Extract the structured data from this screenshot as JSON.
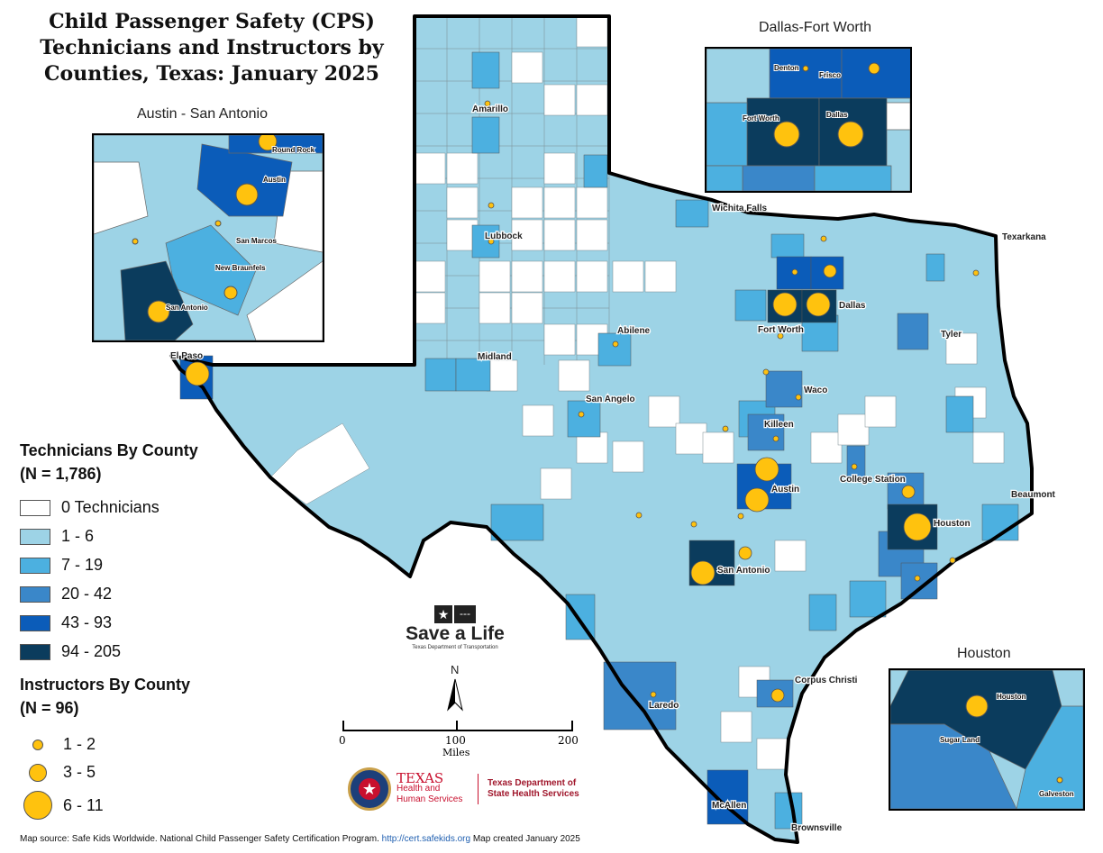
{
  "title": [
    "Child Passenger Safety (CPS)",
    "Technicians and Instructors by",
    "Counties, Texas: January 2025"
  ],
  "colors": {
    "c0": "#ffffff",
    "c1": "#9dd3e6",
    "c2": "#4cb0e0",
    "c3": "#3a87c9",
    "c4": "#0b5cb9",
    "c5": "#0b3c5d",
    "instructor": "#ffc20e"
  },
  "legend": {
    "technicians_title": "Technicians By County",
    "technicians_n": "(N = 1,786)",
    "technicians": [
      {
        "label": "0 Technicians",
        "color": "#ffffff"
      },
      {
        "label": "1 - 6",
        "color": "#9dd3e6"
      },
      {
        "label": "7 - 19",
        "color": "#4cb0e0"
      },
      {
        "label": "20 - 42",
        "color": "#3a87c9"
      },
      {
        "label": "43 - 93",
        "color": "#0b5cb9"
      },
      {
        "label": "94 - 205",
        "color": "#0b3c5d"
      }
    ],
    "instructors_title": "Instructors By County",
    "instructors_n": "(N = 96)",
    "instructors": [
      {
        "label": "1 - 2",
        "size": "small"
      },
      {
        "label": "3 - 5",
        "size": "medium"
      },
      {
        "label": "6 - 11",
        "size": "large"
      }
    ]
  },
  "cities": [
    "Amarillo",
    "Lubbock",
    "Wichita Falls",
    "Texarkana",
    "Dallas",
    "Fort Worth",
    "Abilene",
    "Tyler",
    "Midland",
    "El Paso",
    "Waco",
    "San Angelo",
    "Killeen",
    "College Station",
    "Austin",
    "Beaumont",
    "Houston",
    "San Antonio",
    "Corpus Christi",
    "Laredo",
    "McAllen",
    "Brownsville"
  ],
  "insets": {
    "austin": {
      "title": "Austin - San Antonio",
      "labels": [
        "Round Rock",
        "Austin",
        "San Marcos",
        "New Braunfels",
        "San Antonio"
      ]
    },
    "dfw": {
      "title": "Dallas-Fort Worth",
      "labels": [
        "Denton",
        "Frisco",
        "Fort Worth",
        "Dallas"
      ]
    },
    "houston": {
      "title": "Houston",
      "labels": [
        "Houston",
        "Sugar Land",
        "Galveston"
      ]
    }
  },
  "scale": {
    "ticks": [
      "0",
      "100",
      "200"
    ],
    "unit": "Miles"
  },
  "north": "N",
  "logos": {
    "txdot": {
      "main": "Save a Life",
      "sub": "Texas Department of Transportation"
    },
    "hhs": {
      "main": "TEXAS",
      "sub": "Health and Human Services",
      "dshs": "Texas Department of State Health Services"
    }
  },
  "footer": {
    "source": "Map source: Safe Kids Worldwide. National Child Passenger Safety Certification Program.",
    "url": "http://cert.safekids.org",
    "created": "Map created January 2025"
  }
}
